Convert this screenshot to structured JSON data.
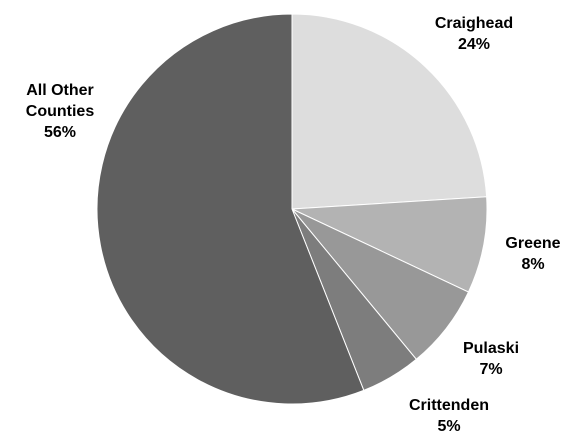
{
  "chart_data": {
    "type": "pie",
    "title": "",
    "start_angle_deg": 90,
    "direction": "clockwise",
    "slices": [
      {
        "label_lines": [
          "Craighead"
        ],
        "percent_text": "24%",
        "value": 24,
        "color": "#dddddd"
      },
      {
        "label_lines": [
          "Greene"
        ],
        "percent_text": "8%",
        "value": 8,
        "color": "#b3b3b3"
      },
      {
        "label_lines": [
          "Pulaski"
        ],
        "percent_text": "7%",
        "value": 7,
        "color": "#989898"
      },
      {
        "label_lines": [
          "Crittenden"
        ],
        "percent_text": "5%",
        "value": 5,
        "color": "#7d7d7d"
      },
      {
        "label_lines": [
          "All Other",
          "Counties"
        ],
        "percent_text": "56%",
        "value": 56,
        "color": "#5f5f5f"
      }
    ]
  }
}
